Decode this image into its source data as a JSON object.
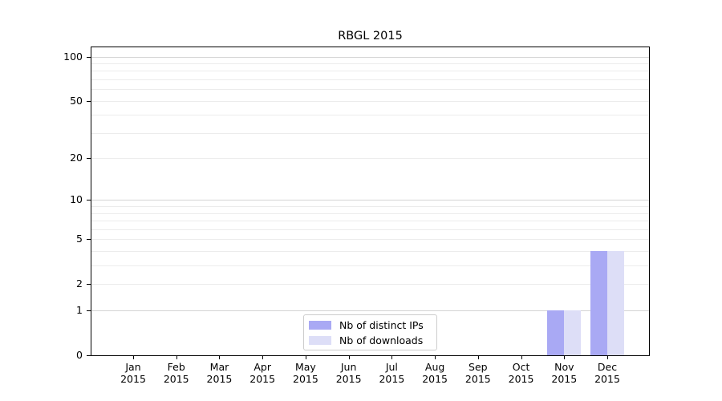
{
  "chart_data": {
    "type": "bar",
    "title": "RBGL 2015",
    "categories": [
      {
        "month": "Jan",
        "year": "2015"
      },
      {
        "month": "Feb",
        "year": "2015"
      },
      {
        "month": "Mar",
        "year": "2015"
      },
      {
        "month": "Apr",
        "year": "2015"
      },
      {
        "month": "May",
        "year": "2015"
      },
      {
        "month": "Jun",
        "year": "2015"
      },
      {
        "month": "Jul",
        "year": "2015"
      },
      {
        "month": "Aug",
        "year": "2015"
      },
      {
        "month": "Sep",
        "year": "2015"
      },
      {
        "month": "Oct",
        "year": "2015"
      },
      {
        "month": "Nov",
        "year": "2015"
      },
      {
        "month": "Dec",
        "year": "2015"
      }
    ],
    "series": [
      {
        "name": "Nb of distinct IPs",
        "color": "#a9a9f4",
        "values": [
          0,
          0,
          0,
          0,
          0,
          0,
          0,
          0,
          0,
          0,
          1,
          4
        ]
      },
      {
        "name": "Nb of downloads",
        "color": "#dddef7",
        "values": [
          0,
          0,
          0,
          0,
          0,
          0,
          0,
          0,
          0,
          0,
          1,
          4
        ]
      }
    ],
    "xlabel": "",
    "ylabel": "",
    "yscale": "log1p",
    "ylim": [
      0,
      117
    ],
    "yticks": [
      100,
      50,
      20,
      10,
      5,
      2,
      1,
      0
    ],
    "grid_major": [
      1,
      10,
      100
    ],
    "grid_minor": [
      2,
      3,
      4,
      5,
      6,
      7,
      8,
      9,
      20,
      30,
      40,
      50,
      60,
      70,
      80,
      90
    ],
    "grid": "horizontal",
    "legend_position": "lower-center",
    "colors": {
      "grid_major": "#d4d4d4",
      "grid_minor": "#ececec",
      "axis": "#000000",
      "background": "#ffffff",
      "legend_border": "#cccccc",
      "text": "#000000"
    }
  }
}
